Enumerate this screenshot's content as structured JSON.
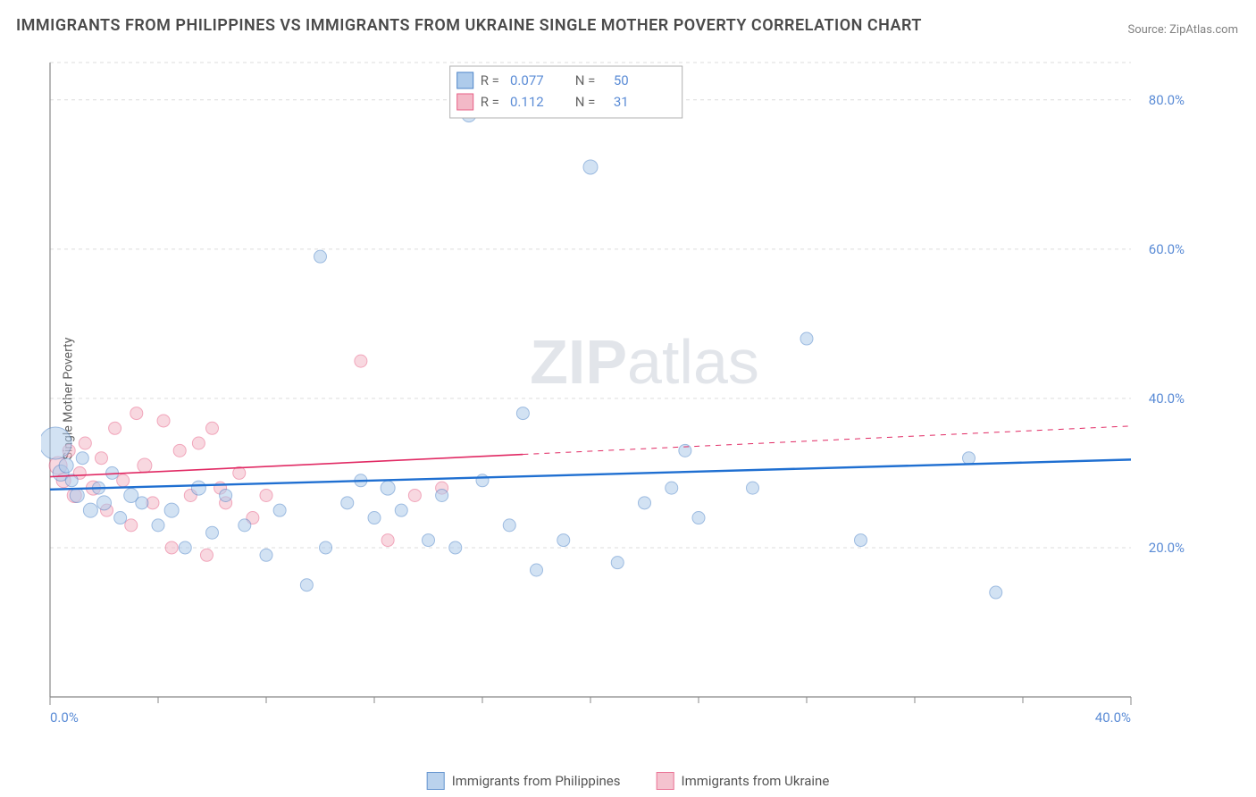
{
  "title": "IMMIGRANTS FROM PHILIPPINES VS IMMIGRANTS FROM UKRAINE SINGLE MOTHER POVERTY CORRELATION CHART",
  "source": "Source: ZipAtlas.com",
  "ylabel": "Single Mother Poverty",
  "watermark": "ZIPatlas",
  "chart": {
    "type": "scatter_with_trendlines",
    "background_color": "#ffffff",
    "grid_color": "#dcdcdc",
    "grid_dash": "4 4",
    "axis_color": "#888888",
    "x_min": 0.0,
    "x_max": 40.0,
    "y_min": 0.0,
    "y_max": 85.0,
    "x_ticks": [
      0.0,
      40.0
    ],
    "x_tick_labels": [
      "0.0%",
      "40.0%"
    ],
    "x_minor_ticks": [
      4,
      8,
      12,
      16,
      20,
      24,
      28,
      32,
      36
    ],
    "y_ticks": [
      20.0,
      40.0,
      60.0,
      80.0
    ],
    "y_tick_labels": [
      "20.0%",
      "40.0%",
      "60.0%",
      "80.0%"
    ],
    "y_label_color": "#5b8cd6",
    "x_label_color": "#5b8cd6",
    "tick_fontsize": 15
  },
  "series": [
    {
      "name": "Immigrants from Philippines",
      "key": "philippines",
      "fill": "#aecbeb",
      "stroke": "#4d84c8",
      "opacity": 0.55,
      "r_value": "0.077",
      "n_value": "50",
      "trend": {
        "x1": 0,
        "y1": 27.8,
        "x2": 40,
        "y2": 31.8,
        "dash_after_x": null,
        "color": "#1f6fd1",
        "stroke_width": 2.4
      },
      "trend_ext": {
        "x1": 0,
        "y1": 27.8,
        "x2": 40,
        "y2": 31.8
      },
      "points": [
        {
          "x": 0.2,
          "y": 34,
          "r": 18
        },
        {
          "x": 0.4,
          "y": 30,
          "r": 9
        },
        {
          "x": 0.6,
          "y": 31,
          "r": 8
        },
        {
          "x": 0.8,
          "y": 29,
          "r": 7
        },
        {
          "x": 1.0,
          "y": 27,
          "r": 8
        },
        {
          "x": 1.2,
          "y": 32,
          "r": 7
        },
        {
          "x": 1.5,
          "y": 25,
          "r": 8
        },
        {
          "x": 1.8,
          "y": 28,
          "r": 7
        },
        {
          "x": 2.0,
          "y": 26,
          "r": 8
        },
        {
          "x": 2.3,
          "y": 30,
          "r": 7
        },
        {
          "x": 2.6,
          "y": 24,
          "r": 7
        },
        {
          "x": 3.0,
          "y": 27,
          "r": 8
        },
        {
          "x": 3.4,
          "y": 26,
          "r": 7
        },
        {
          "x": 4.0,
          "y": 23,
          "r": 7
        },
        {
          "x": 4.5,
          "y": 25,
          "r": 8
        },
        {
          "x": 5.0,
          "y": 20,
          "r": 7
        },
        {
          "x": 5.5,
          "y": 28,
          "r": 8
        },
        {
          "x": 6.0,
          "y": 22,
          "r": 7
        },
        {
          "x": 6.5,
          "y": 27,
          "r": 7
        },
        {
          "x": 7.2,
          "y": 23,
          "r": 7
        },
        {
          "x": 8.0,
          "y": 19,
          "r": 7
        },
        {
          "x": 8.5,
          "y": 25,
          "r": 7
        },
        {
          "x": 9.5,
          "y": 15,
          "r": 7
        },
        {
          "x": 10,
          "y": 59,
          "r": 7
        },
        {
          "x": 10.2,
          "y": 20,
          "r": 7
        },
        {
          "x": 11,
          "y": 26,
          "r": 7
        },
        {
          "x": 11.5,
          "y": 29,
          "r": 7
        },
        {
          "x": 12,
          "y": 24,
          "r": 7
        },
        {
          "x": 12.5,
          "y": 28,
          "r": 8
        },
        {
          "x": 13,
          "y": 25,
          "r": 7
        },
        {
          "x": 14,
          "y": 21,
          "r": 7
        },
        {
          "x": 14.5,
          "y": 27,
          "r": 7
        },
        {
          "x": 15,
          "y": 20,
          "r": 7
        },
        {
          "x": 15.5,
          "y": 78,
          "r": 8
        },
        {
          "x": 16,
          "y": 29,
          "r": 7
        },
        {
          "x": 17,
          "y": 23,
          "r": 7
        },
        {
          "x": 17.5,
          "y": 38,
          "r": 7
        },
        {
          "x": 18,
          "y": 17,
          "r": 7
        },
        {
          "x": 19,
          "y": 21,
          "r": 7
        },
        {
          "x": 20,
          "y": 71,
          "r": 8
        },
        {
          "x": 21,
          "y": 18,
          "r": 7
        },
        {
          "x": 22,
          "y": 26,
          "r": 7
        },
        {
          "x": 23,
          "y": 28,
          "r": 7
        },
        {
          "x": 23.5,
          "y": 33,
          "r": 7
        },
        {
          "x": 24,
          "y": 24,
          "r": 7
        },
        {
          "x": 26,
          "y": 28,
          "r": 7
        },
        {
          "x": 28,
          "y": 48,
          "r": 7
        },
        {
          "x": 30,
          "y": 21,
          "r": 7
        },
        {
          "x": 34,
          "y": 32,
          "r": 7
        },
        {
          "x": 35,
          "y": 14,
          "r": 7
        }
      ]
    },
    {
      "name": "Immigrants from Ukraine",
      "key": "ukraine",
      "fill": "#f3b9c7",
      "stroke": "#e75e85",
      "opacity": 0.55,
      "r_value": "0.112",
      "n_value": "31",
      "trend": {
        "x1": 0,
        "y1": 29.5,
        "x2": 17.5,
        "y2": 32.5,
        "dash_after_x": 17.5,
        "color": "#e12a64",
        "stroke_width": 1.6
      },
      "trend_ext": {
        "x1": 17.5,
        "y1": 32.5,
        "x2": 40,
        "y2": 36.3
      },
      "points": [
        {
          "x": 0.3,
          "y": 31,
          "r": 10
        },
        {
          "x": 0.5,
          "y": 29,
          "r": 8
        },
        {
          "x": 0.7,
          "y": 33,
          "r": 7
        },
        {
          "x": 0.9,
          "y": 27,
          "r": 8
        },
        {
          "x": 1.1,
          "y": 30,
          "r": 7
        },
        {
          "x": 1.3,
          "y": 34,
          "r": 7
        },
        {
          "x": 1.6,
          "y": 28,
          "r": 8
        },
        {
          "x": 1.9,
          "y": 32,
          "r": 7
        },
        {
          "x": 2.1,
          "y": 25,
          "r": 7
        },
        {
          "x": 2.4,
          "y": 36,
          "r": 7
        },
        {
          "x": 2.7,
          "y": 29,
          "r": 7
        },
        {
          "x": 3.0,
          "y": 23,
          "r": 7
        },
        {
          "x": 3.2,
          "y": 38,
          "r": 7
        },
        {
          "x": 3.5,
          "y": 31,
          "r": 8
        },
        {
          "x": 3.8,
          "y": 26,
          "r": 7
        },
        {
          "x": 4.2,
          "y": 37,
          "r": 7
        },
        {
          "x": 4.5,
          "y": 20,
          "r": 7
        },
        {
          "x": 4.8,
          "y": 33,
          "r": 7
        },
        {
          "x": 5.2,
          "y": 27,
          "r": 7
        },
        {
          "x": 5.5,
          "y": 34,
          "r": 7
        },
        {
          "x": 5.8,
          "y": 19,
          "r": 7
        },
        {
          "x": 6.0,
          "y": 36,
          "r": 7
        },
        {
          "x": 6.3,
          "y": 28,
          "r": 7
        },
        {
          "x": 6.5,
          "y": 26,
          "r": 7
        },
        {
          "x": 7.0,
          "y": 30,
          "r": 7
        },
        {
          "x": 7.5,
          "y": 24,
          "r": 7
        },
        {
          "x": 8.0,
          "y": 27,
          "r": 7
        },
        {
          "x": 11.5,
          "y": 45,
          "r": 7
        },
        {
          "x": 12.5,
          "y": 21,
          "r": 7
        },
        {
          "x": 13.5,
          "y": 27,
          "r": 7
        },
        {
          "x": 14.5,
          "y": 28,
          "r": 7
        }
      ]
    }
  ],
  "legend_top": {
    "border_color": "#b0b0b0",
    "bg": "#ffffff",
    "label_R": "R =",
    "label_N": "N =",
    "label_color": "#666666",
    "value_color": "#5b8cd6"
  },
  "legend_bottom": {
    "items": [
      {
        "label": "Immigrants from Philippines",
        "fill": "#aecbeb",
        "stroke": "#4d84c8"
      },
      {
        "label": "Immigrants from Ukraine",
        "fill": "#f3b9c7",
        "stroke": "#e75e85"
      }
    ]
  },
  "watermark_style": {
    "color": "#c0c7d1",
    "opacity": 0.45,
    "fontsize": 70,
    "zip_weight": 700
  }
}
